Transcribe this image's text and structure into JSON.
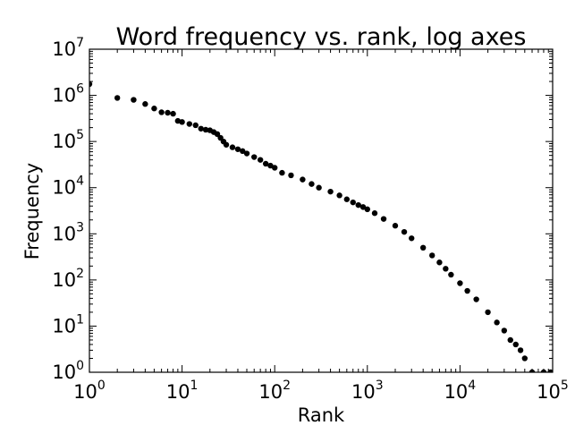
{
  "chart_data": {
    "type": "scatter",
    "title": "Word frequency vs. rank, log axes",
    "xlabel": "Rank",
    "ylabel": "Frequency",
    "xscale": "log",
    "yscale": "log",
    "xlim": [
      1,
      100000
    ],
    "ylim": [
      1,
      10000000
    ],
    "grid": false,
    "x_ticks": [
      {
        "base": "10",
        "exp": "0",
        "value": 1
      },
      {
        "base": "10",
        "exp": "1",
        "value": 10
      },
      {
        "base": "10",
        "exp": "2",
        "value": 100
      },
      {
        "base": "10",
        "exp": "3",
        "value": 1000
      },
      {
        "base": "10",
        "exp": "4",
        "value": 10000
      },
      {
        "base": "10",
        "exp": "5",
        "value": 100000
      }
    ],
    "y_ticks": [
      {
        "base": "10",
        "exp": "0",
        "value": 1
      },
      {
        "base": "10",
        "exp": "1",
        "value": 10
      },
      {
        "base": "10",
        "exp": "2",
        "value": 100
      },
      {
        "base": "10",
        "exp": "3",
        "value": 1000
      },
      {
        "base": "10",
        "exp": "4",
        "value": 10000
      },
      {
        "base": "10",
        "exp": "5",
        "value": 100000
      },
      {
        "base": "10",
        "exp": "6",
        "value": 1000000
      },
      {
        "base": "10",
        "exp": "7",
        "value": 10000000
      }
    ],
    "series": [
      {
        "color": "#000000",
        "marker": "circle",
        "points": [
          [
            1,
            1750000
          ],
          [
            2,
            880000
          ],
          [
            3,
            800000
          ],
          [
            4,
            650000
          ],
          [
            5,
            520000
          ],
          [
            6,
            430000
          ],
          [
            7,
            420000
          ],
          [
            8,
            400000
          ],
          [
            9,
            280000
          ],
          [
            10,
            265000
          ],
          [
            12,
            240000
          ],
          [
            14,
            225000
          ],
          [
            16,
            190000
          ],
          [
            18,
            180000
          ],
          [
            20,
            175000
          ],
          [
            22,
            160000
          ],
          [
            24,
            145000
          ],
          [
            26,
            120000
          ],
          [
            28,
            100000
          ],
          [
            30,
            85000
          ],
          [
            35,
            75000
          ],
          [
            40,
            68000
          ],
          [
            45,
            62000
          ],
          [
            50,
            55000
          ],
          [
            60,
            46000
          ],
          [
            70,
            40000
          ],
          [
            80,
            33000
          ],
          [
            90,
            30000
          ],
          [
            100,
            27000
          ],
          [
            120,
            21000
          ],
          [
            150,
            18500
          ],
          [
            200,
            15000
          ],
          [
            250,
            12000
          ],
          [
            300,
            10000
          ],
          [
            400,
            8200
          ],
          [
            500,
            6800
          ],
          [
            600,
            5600
          ],
          [
            700,
            4800
          ],
          [
            800,
            4200
          ],
          [
            900,
            3800
          ],
          [
            1000,
            3400
          ],
          [
            1200,
            2800
          ],
          [
            1500,
            2100
          ],
          [
            2000,
            1500
          ],
          [
            2500,
            1100
          ],
          [
            3000,
            800
          ],
          [
            4000,
            500
          ],
          [
            5000,
            340
          ],
          [
            6000,
            240
          ],
          [
            7000,
            175
          ],
          [
            8000,
            130
          ],
          [
            10000,
            85
          ],
          [
            12000,
            58
          ],
          [
            15000,
            38
          ],
          [
            20000,
            20
          ],
          [
            25000,
            12
          ],
          [
            30000,
            8
          ],
          [
            35000,
            5
          ],
          [
            40000,
            4
          ],
          [
            45000,
            3
          ],
          [
            50000,
            2
          ],
          [
            60000,
            1
          ],
          [
            80000,
            1
          ],
          [
            95000,
            1
          ]
        ]
      }
    ]
  }
}
